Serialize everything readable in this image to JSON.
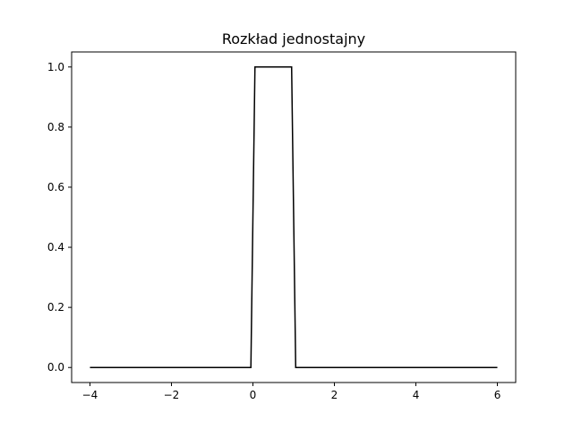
{
  "chart_data": {
    "type": "line",
    "title": "Rozkład jednostajny",
    "xlabel": "",
    "ylabel": "",
    "xlim": [
      -4.45,
      6.45
    ],
    "ylim": [
      -0.05,
      1.05
    ],
    "x_ticks": [
      -4,
      -2,
      0,
      2,
      4,
      6
    ],
    "x_tick_labels": [
      "−4",
      "−2",
      "0",
      "2",
      "4",
      "6"
    ],
    "y_ticks": [
      0.0,
      0.2,
      0.4,
      0.6,
      0.8,
      1.0
    ],
    "y_tick_labels": [
      "0.0",
      "0.2",
      "0.4",
      "0.6",
      "0.8",
      "1.0"
    ],
    "grid": false,
    "series": [
      {
        "color": "#000000",
        "x": [
          -4,
          -0.05,
          0.05,
          0.95,
          1.05,
          6
        ],
        "y": [
          0,
          0,
          1,
          1,
          0,
          0
        ]
      }
    ]
  }
}
